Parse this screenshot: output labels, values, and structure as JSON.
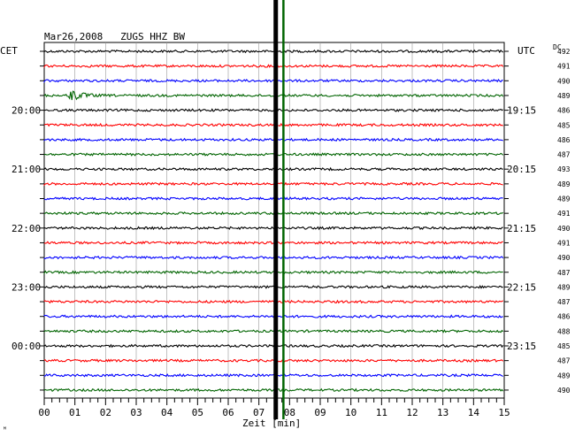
{
  "chart_data": {
    "type": "line",
    "title": "Mar26,2008   ZUGS HHZ BW",
    "xlabel": "Zeit [min]",
    "left_axis_title": "CET",
    "right_axis_title": "UTC",
    "dc_header": "DC",
    "xlim": [
      0,
      15
    ],
    "x_tick_labels": [
      "00",
      "01",
      "02",
      "03",
      "04",
      "05",
      "06",
      "07",
      "08",
      "09",
      "10",
      "11",
      "12",
      "13",
      "14",
      "15"
    ],
    "trace_colors": [
      "#000000",
      "#ff0000",
      "#0000ff",
      "#006400"
    ],
    "left_time_labels": [
      {
        "trace_index": 4,
        "text": "20:00"
      },
      {
        "trace_index": 8,
        "text": "21:00"
      },
      {
        "trace_index": 12,
        "text": "22:00"
      },
      {
        "trace_index": 16,
        "text": "23:00"
      },
      {
        "trace_index": 20,
        "text": "00:00"
      }
    ],
    "right_time_labels": [
      {
        "trace_index": 4,
        "text": "19:15"
      },
      {
        "trace_index": 8,
        "text": "20:15"
      },
      {
        "trace_index": 12,
        "text": "21:15"
      },
      {
        "trace_index": 16,
        "text": "22:15"
      },
      {
        "trace_index": 20,
        "text": "23:15"
      }
    ],
    "dc_values": [
      492,
      491,
      490,
      489,
      486,
      485,
      486,
      487,
      493,
      489,
      489,
      491,
      490,
      491,
      490,
      487,
      489,
      487,
      486,
      488,
      485,
      487,
      489,
      490
    ],
    "event": {
      "trace_index": 3,
      "start_min": 0.8,
      "end_min": 2.0,
      "color": "#006400"
    },
    "marker_lines": [
      {
        "x_min": 7.55,
        "color": "#000000"
      },
      {
        "x_min": 7.8,
        "color": "#006400"
      }
    ],
    "corner_mark": "ᴹ",
    "grid": true
  }
}
